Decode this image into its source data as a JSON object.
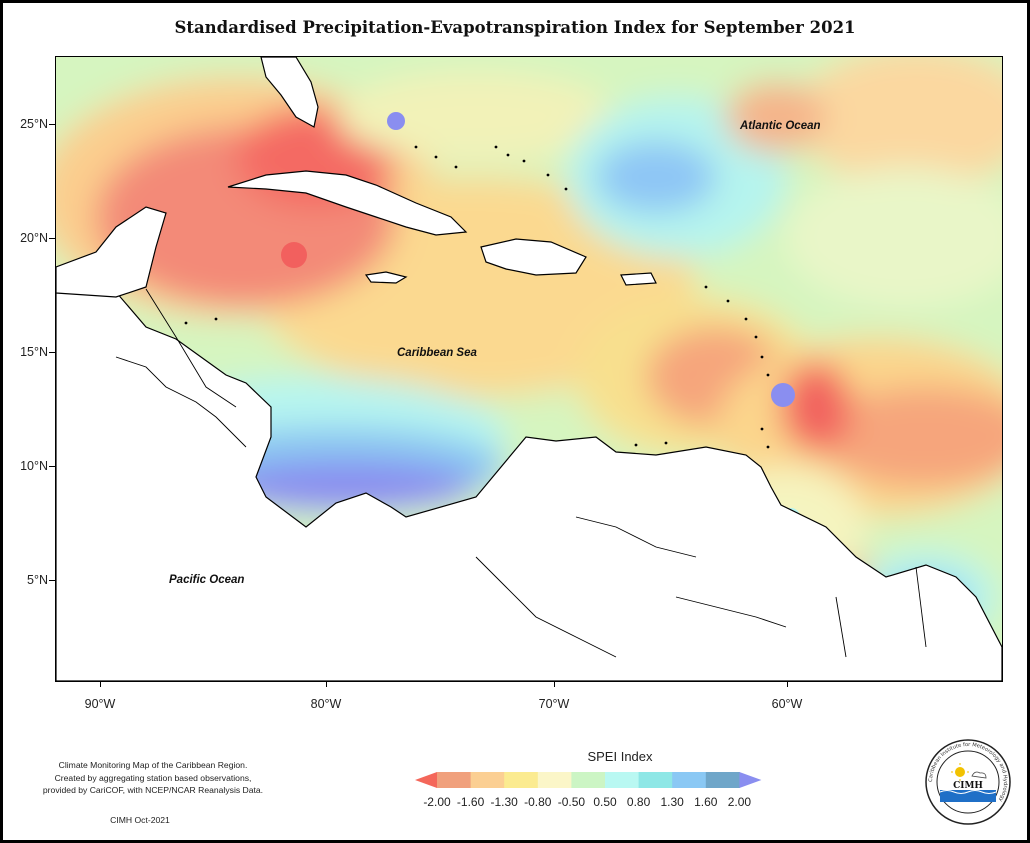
{
  "title": "Standardised Precipitation-Evapotranspiration Index for September 2021",
  "axes": {
    "y_labels": [
      "25°N",
      "20°N",
      "15°N",
      "10°N",
      "5°N"
    ],
    "x_labels": [
      "90°W",
      "80°W",
      "70°W",
      "60°W"
    ]
  },
  "places": {
    "atlantic": "Atlantic Ocean",
    "caribbean": "Caribbean Sea",
    "pacific": "Pacific Ocean"
  },
  "credits": {
    "lines": [
      "Climate Monitoring Map of the Caribbean Region.",
      "Created by aggregating station based observations,",
      "provided by CariCOF, with NCEP/NCAR Reanalysis Data."
    ],
    "stamp": "CIMH Oct-2021"
  },
  "legend": {
    "title": "SPEI Index",
    "labels": [
      "-2.00",
      "-1.60",
      "-1.30",
      "-0.80",
      "-0.50",
      "0.50",
      "0.80",
      "1.30",
      "1.60",
      "2.00"
    ],
    "colors": [
      "#f4675a",
      "#f0a07c",
      "#fbcf93",
      "#fbeb90",
      "#fbf6c8",
      "#ccf5c4",
      "#b9f8f2",
      "#8ee7e6",
      "#8ac8f4",
      "#6fa6c9",
      "#8a8ef0"
    ]
  },
  "logo": {
    "text": "CIMH",
    "ring_text": "Caribbean Institute for Meteorology and Hydrology"
  }
}
